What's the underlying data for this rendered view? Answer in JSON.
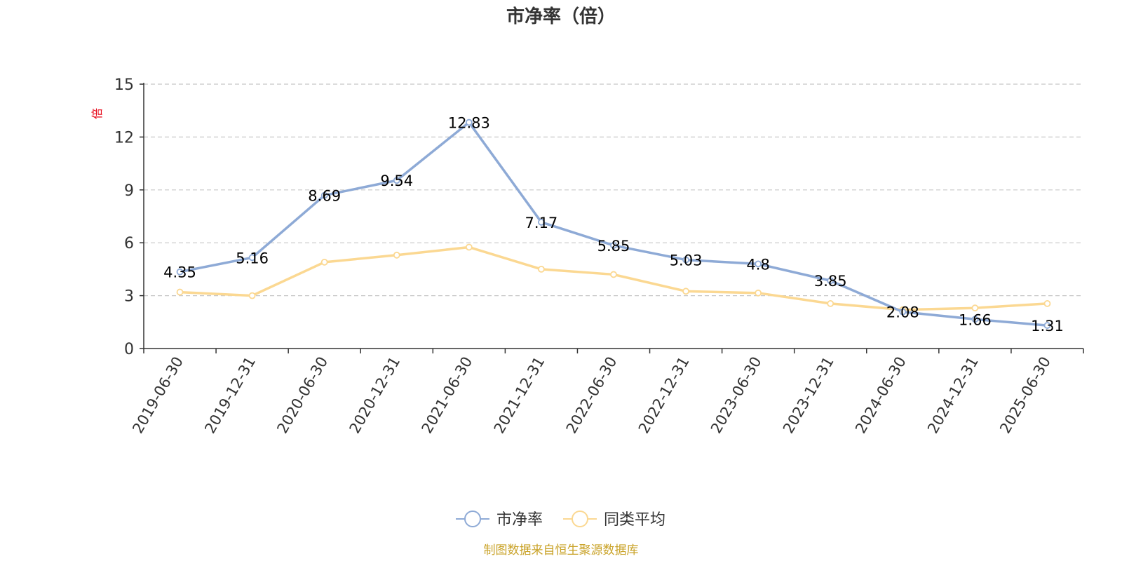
{
  "chart_data": {
    "type": "line",
    "title": "市净率（倍）",
    "unit": "倍",
    "categories": [
      "2019-06-30",
      "2019-12-31",
      "2020-06-30",
      "2020-12-31",
      "2021-06-30",
      "2021-12-31",
      "2022-06-30",
      "2022-12-31",
      "2023-06-30",
      "2023-12-31",
      "2024-06-30",
      "2024-12-31",
      "2025-06-30"
    ],
    "yticks": [
      "0",
      "3",
      "6",
      "9",
      "12",
      "15"
    ],
    "ylim": [
      0,
      15
    ],
    "grid": true,
    "legend_position": "bottom",
    "series": [
      {
        "name": "市净率",
        "color": "#8eaad6",
        "values": [
          4.35,
          5.16,
          8.69,
          9.54,
          12.83,
          7.17,
          5.85,
          5.03,
          4.8,
          3.85,
          2.08,
          1.66,
          1.31
        ],
        "labels": [
          "4.35",
          "5.16",
          "8.69",
          "9.54",
          "12.83",
          "7.17",
          "5.85",
          "5.03",
          "4.8",
          "3.85",
          "2.08",
          "1.66",
          "1.31"
        ]
      },
      {
        "name": "同类平均",
        "color": "#fbd892",
        "values": [
          3.2,
          3.0,
          4.9,
          5.3,
          5.75,
          4.5,
          4.2,
          3.25,
          3.15,
          2.55,
          2.2,
          2.3,
          2.55
        ]
      }
    ],
    "source": "制图数据来自恒生聚源数据库"
  }
}
